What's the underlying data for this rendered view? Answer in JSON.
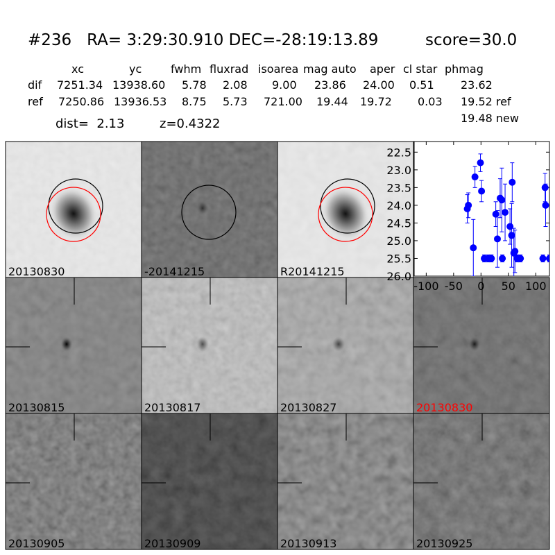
{
  "header": {
    "title": "#236   RA= 3:29:30.910 DEC=-28:19:13.89",
    "score": "score=30.0"
  },
  "table": {
    "columns": [
      "xc",
      "yc",
      "fwhm",
      "fluxrad",
      "isoarea",
      "mag auto",
      "aper",
      "cl star",
      "phmag"
    ],
    "rows": [
      [
        "dif",
        "7251.34",
        "13938.60",
        "5.78",
        "2.08",
        "9.00",
        "23.86",
        "24.00",
        "0.51",
        "23.62"
      ],
      [
        "ref",
        "7250.86",
        "13936.53",
        "8.75",
        "5.73",
        "721.00",
        "19.44",
        "19.72",
        "0.03",
        "19.52 ref"
      ]
    ],
    "new_mag": "19.48 new"
  },
  "dist": "dist=  2.13",
  "redshift": "z=0.4322",
  "panels": [
    {
      "label": "20130830"
    },
    {
      "label": "-20141215"
    },
    {
      "label": "R20141215"
    },
    {
      "label": "20130815"
    },
    {
      "label": "20130817"
    },
    {
      "label": "20130827"
    },
    {
      "label": "20130830",
      "label_color": "#ff0000"
    },
    {
      "label": "20130905"
    },
    {
      "label": "20130909"
    },
    {
      "label": "20130913"
    },
    {
      "label": "20130925"
    }
  ],
  "chart_data": {
    "type": "scatter",
    "color": "#0000ff",
    "y_inverted": true,
    "x": [
      -25,
      -23,
      -14,
      -11,
      -1,
      1,
      6,
      13,
      19,
      27,
      30,
      35,
      38,
      39,
      44,
      53,
      56,
      57,
      60,
      62,
      66,
      72,
      113,
      117,
      118,
      125
    ],
    "values": [
      24.1,
      24.0,
      25.2,
      23.2,
      22.8,
      23.6,
      25.5,
      25.5,
      25.5,
      24.25,
      24.95,
      23.8,
      23.85,
      25.5,
      24.2,
      24.6,
      24.85,
      23.35,
      25.35,
      25.3,
      25.5,
      25.5,
      25.5,
      23.5,
      24.0,
      25.5
    ],
    "errors": [
      0.4,
      0.35,
      0.8,
      0.3,
      0.25,
      0.3,
      0.1,
      0.1,
      0.1,
      0.35,
      0.8,
      0.55,
      0.9,
      0.1,
      0.8,
      0.5,
      0.9,
      0.55,
      0.7,
      0.6,
      0.1,
      0.1,
      0.1,
      0.4,
      0.6,
      0.1
    ],
    "xlim": [
      -122,
      125
    ],
    "ylim": [
      22.2,
      26.0
    ],
    "xticks": [
      -100,
      -50,
      0,
      50,
      100
    ],
    "yticks": [
      22.5,
      {
        "value": 23,
        "label": "23.0"
      },
      23.5,
      {
        "value": 24,
        "label": "24.0"
      },
      24.5,
      {
        "value": 25,
        "label": "25.0"
      },
      25.5,
      {
        "value": 26,
        "label": "26.0"
      }
    ]
  }
}
